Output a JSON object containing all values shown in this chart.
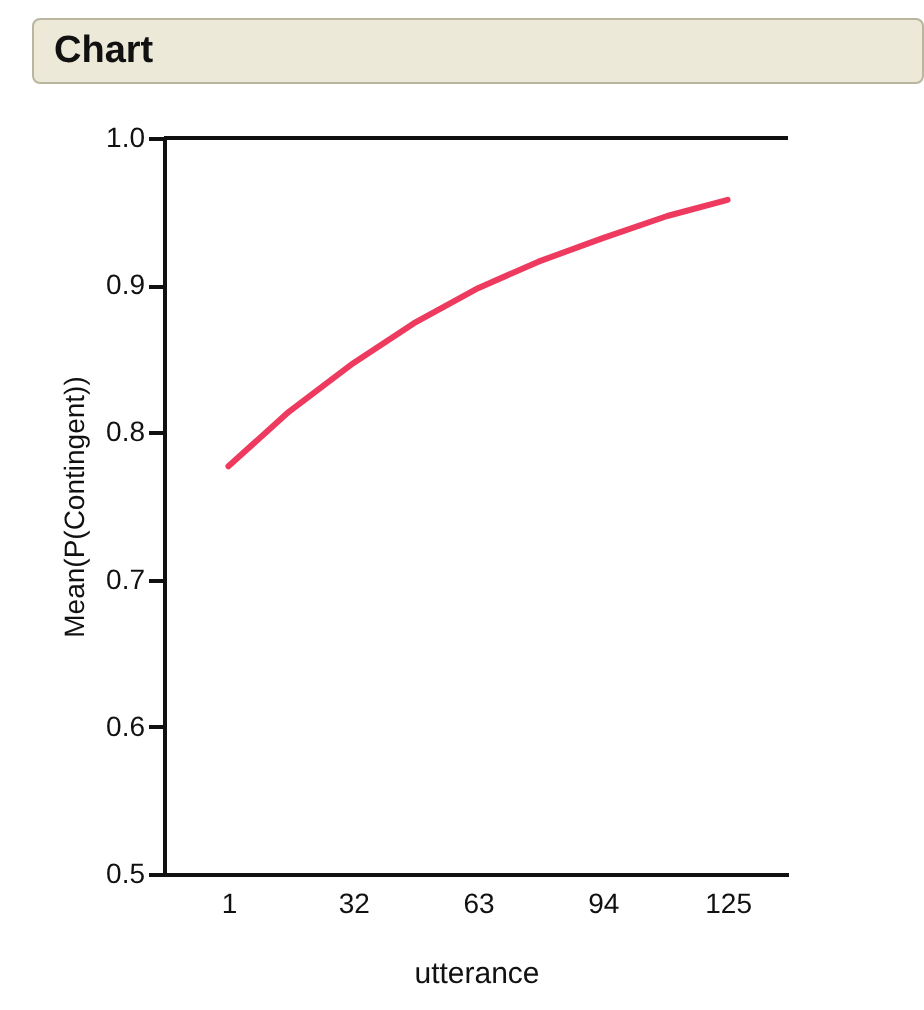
{
  "chart_data": {
    "type": "line",
    "title": "Chart",
    "xlabel": "utterance",
    "ylabel": "Mean(P(Contingent))",
    "x": [
      1,
      16,
      32,
      47,
      63,
      78,
      94,
      110,
      125
    ],
    "series": [
      {
        "color": "#ee3a5e",
        "values": [
          0.777,
          0.814,
          0.847,
          0.874,
          0.898,
          0.916,
          0.932,
          0.947,
          0.958
        ]
      }
    ],
    "xlim": [
      -15,
      140
    ],
    "xticks": [
      1,
      32,
      63,
      94,
      125
    ],
    "ylim": [
      0.5,
      1.0
    ],
    "yticks": [
      0.5,
      0.6,
      0.7,
      0.8,
      0.9,
      {
        "value": 1.0,
        "label": "1.0"
      }
    ],
    "grid": false,
    "marker": "none",
    "line_style": "solid"
  }
}
